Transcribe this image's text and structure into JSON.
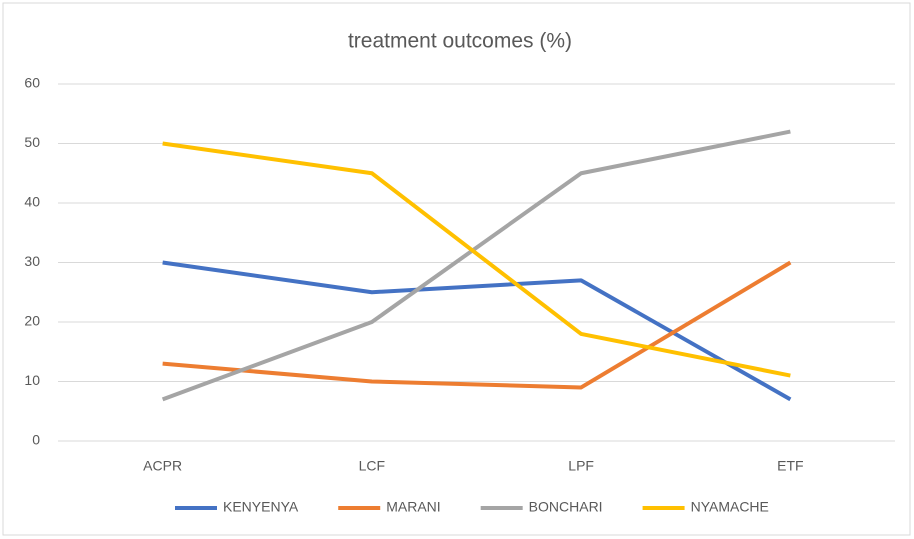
{
  "chart_data": {
    "type": "line",
    "title": "treatment outcomes (%)",
    "categories": [
      "ACPR",
      "LCF",
      "LPF",
      "ETF"
    ],
    "series": [
      {
        "name": "KENYENYA",
        "color": "#4472c4",
        "values": [
          30,
          25,
          27,
          7
        ]
      },
      {
        "name": "MARANI",
        "color": "#ed7d31",
        "values": [
          13,
          10,
          9,
          30
        ]
      },
      {
        "name": "BONCHARI",
        "color": "#a5a5a5",
        "values": [
          7,
          20,
          45,
          52
        ]
      },
      {
        "name": "NYAMACHE",
        "color": "#ffc000",
        "values": [
          50,
          45,
          18,
          11
        ]
      }
    ],
    "ylim": [
      0,
      60
    ],
    "yticks": [
      0,
      10,
      20,
      30,
      40,
      50,
      60
    ],
    "grid": true,
    "legend": "bottom"
  }
}
